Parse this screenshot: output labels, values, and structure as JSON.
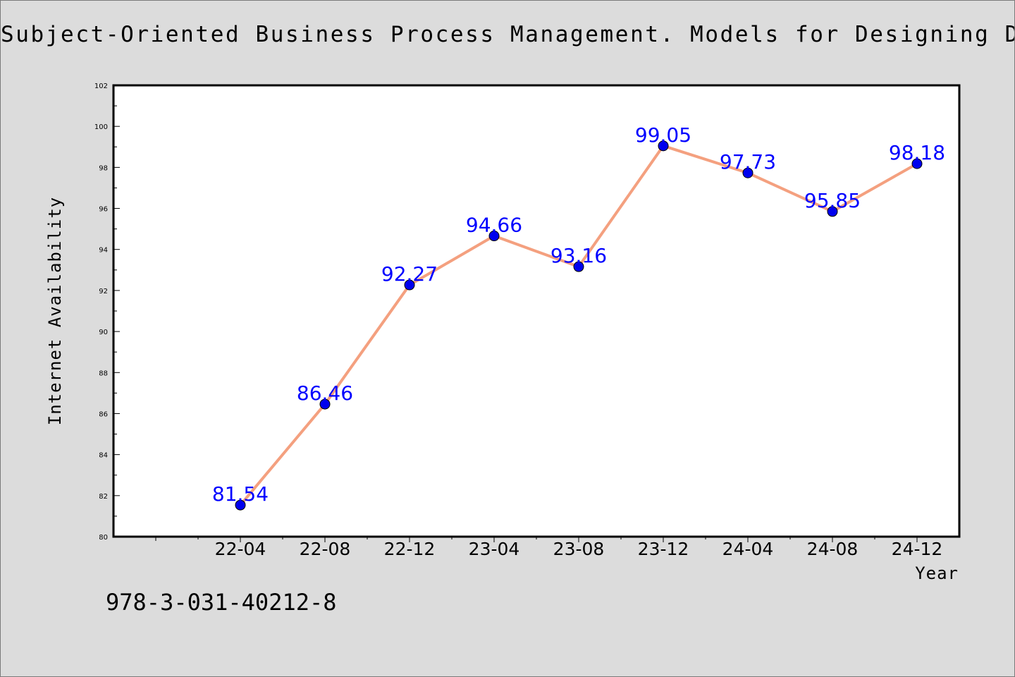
{
  "chart_data": {
    "type": "line",
    "title": "Subject-Oriented Business Process Management. Models for Designing Digital Trans",
    "xlabel": "Year",
    "ylabel": "Internet Availability",
    "categories": [
      "22-04",
      "22-08",
      "22-12",
      "23-04",
      "23-08",
      "23-12",
      "24-04",
      "24-08",
      "24-12"
    ],
    "series": [
      {
        "values": [
          81.54,
          86.46,
          92.27,
          94.66,
          93.16,
          99.05,
          97.73,
          95.85,
          98.18
        ],
        "value_labels": [
          "81.54",
          "86.46",
          "92.27",
          "94.66",
          "93.16",
          "99.05",
          "97.73",
          "95.85",
          "98.18"
        ],
        "line_color": "#f4a07f",
        "marker_color": "#0000ee",
        "label_color": "#0000ff"
      }
    ],
    "ylim": [
      80,
      102
    ],
    "yticks": [
      "80",
      "82",
      "84",
      "86",
      "88",
      "90",
      "92",
      "94",
      "96",
      "98",
      "100",
      "102"
    ],
    "grid": false,
    "legend": "none",
    "colors": {
      "background": "#dcdcdc",
      "plot_background": "#ffffff"
    }
  },
  "footer": {
    "isbn": "978-3-031-40212-8"
  }
}
